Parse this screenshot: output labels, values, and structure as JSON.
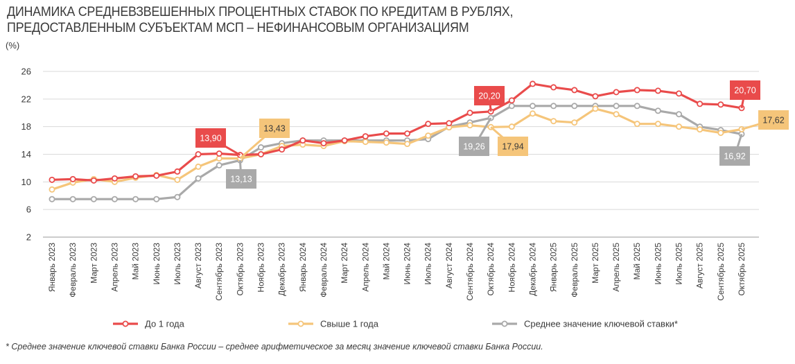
{
  "chart_data": {
    "type": "line",
    "title_line1": "ДИНАМИКА СРЕДНЕВЗВЕШЕННЫХ ПРОЦЕНТНЫХ СТАВОК ПО КРЕДИТАМ В РУБЛЯХ,",
    "title_line2": "ПРЕДОСТАВЛЕННЫМ СУБЪЕКТАМ МСП – НЕФИНАНСОВЫМ ОРГАНИЗАЦИЯМ",
    "ylabel": "(%)",
    "ylim": [
      2,
      26
    ],
    "yticks": [
      "26",
      "22",
      "18",
      "14",
      "10",
      "6",
      "2"
    ],
    "categories": [
      "Январь 2023",
      "Февраль 2023",
      "Март 2023",
      "Апрель 2023",
      "Май 2023",
      "Июнь 2023",
      "Июль 2023",
      "Август 2023",
      "Сентябрь 2023",
      "Октябрь 2023",
      "Ноябрь 2023",
      "Декабрь 2023",
      "Январь 2024",
      "Февраль 2024",
      "Март 2024",
      "Апрель 2024",
      "Май 2024",
      "Июнь 2024",
      "Июль 2024",
      "Август 2024",
      "Сентябрь 2024",
      "Октябрь 2024",
      "Ноябрь 2024",
      "Декабрь 2024",
      "Январь 2025",
      "Февраль 2025",
      "Март 2025",
      "Апрель 2025",
      "Май 2025",
      "Июнь 2025",
      "Июль 2025",
      "Август 2025",
      "Сентябрь 2025",
      "Октябрь 2025"
    ],
    "series": [
      {
        "name": "До 1 года",
        "color": "#e94b4b",
        "values": [
          10.3,
          10.4,
          10.2,
          10.5,
          10.8,
          10.9,
          11.5,
          14.0,
          14.1,
          13.9,
          14.0,
          14.7,
          16.0,
          15.6,
          16.0,
          16.6,
          17.0,
          17.0,
          18.4,
          18.5,
          20.0,
          20.2,
          21.8,
          24.2,
          23.7,
          23.3,
          22.4,
          23.0,
          23.3,
          23.2,
          22.8,
          21.3,
          21.2,
          20.7
        ]
      },
      {
        "name": "Свыше 1 года",
        "color": "#f5c57a",
        "values": [
          8.9,
          9.9,
          10.4,
          10.0,
          10.6,
          11.0,
          10.3,
          12.2,
          13.4,
          13.4,
          14.0,
          15.2,
          15.4,
          15.2,
          15.9,
          15.8,
          15.7,
          15.5,
          16.7,
          17.9,
          18.2,
          17.94,
          18.0,
          19.9,
          18.8,
          18.6,
          20.6,
          19.8,
          18.4,
          18.4,
          18.0,
          17.6,
          17.1,
          17.62
        ]
      },
      {
        "name": "Среднее значение ключевой ставки*",
        "color": "#a9a9a9",
        "values": [
          7.5,
          7.5,
          7.5,
          7.5,
          7.5,
          7.5,
          7.8,
          10.5,
          12.4,
          13.13,
          15.0,
          15.6,
          16.0,
          16.0,
          16.0,
          16.0,
          16.0,
          16.0,
          16.2,
          18.0,
          18.6,
          19.26,
          21.0,
          21.0,
          21.0,
          21.0,
          21.0,
          21.0,
          21.0,
          20.3,
          19.8,
          18.0,
          17.5,
          16.92
        ]
      }
    ],
    "annotations": [
      {
        "text": "13,90",
        "series": 0,
        "index": 9,
        "color": "#e94b4b"
      },
      {
        "text": "13,43",
        "series": 1,
        "index": 9,
        "color": "#f5c57a"
      },
      {
        "text": "13,13",
        "series": 2,
        "index": 9,
        "color": "#a9a9a9"
      },
      {
        "text": "20,20",
        "series": 0,
        "index": 21,
        "color": "#e94b4b"
      },
      {
        "text": "19,26",
        "series": 2,
        "index": 21,
        "color": "#a9a9a9"
      },
      {
        "text": "17,94",
        "series": 1,
        "index": 21,
        "color": "#f5c57a"
      },
      {
        "text": "20,70",
        "series": 0,
        "index": 33,
        "color": "#e94b4b"
      },
      {
        "text": "17,62",
        "series": 1,
        "index": 33,
        "color": "#f5c57a"
      },
      {
        "text": "16,92",
        "series": 2,
        "index": 33,
        "color": "#a9a9a9"
      }
    ],
    "legend": [
      "До 1 года",
      "Свыше 1 года",
      "Среднее значение ключевой ставки*"
    ],
    "legend_position": "bottom",
    "grid": true
  },
  "footnote": "* Среднее значение ключевой ставки Банка России – среднее арифметическое за месяц значение ключевой ставки Банка России."
}
